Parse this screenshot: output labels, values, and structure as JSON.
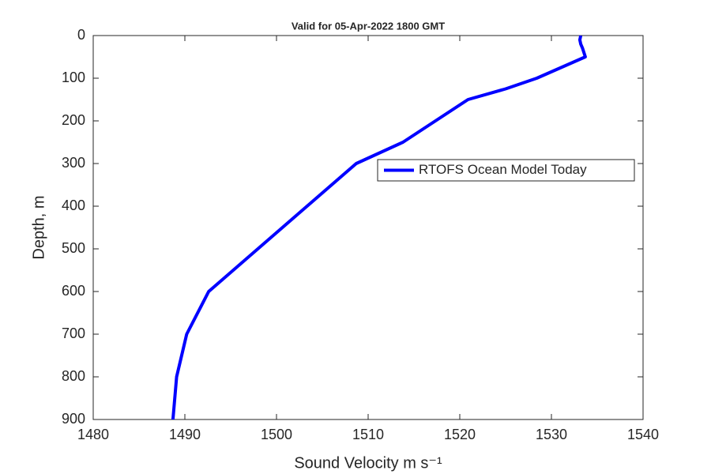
{
  "chart_data": {
    "type": "line",
    "title": "Valid for 05-Apr-2022 1800 GMT",
    "xlabel": "Sound Velocity m s⁻¹",
    "ylabel": "Depth, m",
    "xlim": [
      1480,
      1540
    ],
    "xticks": [
      1480,
      1490,
      1500,
      1510,
      1520,
      1530,
      1540
    ],
    "ylim": [
      0,
      900
    ],
    "yticks": [
      0,
      100,
      200,
      300,
      400,
      500,
      600,
      700,
      800,
      900
    ],
    "y_inverted": true,
    "grid": false,
    "legend": "east",
    "series": [
      {
        "name": "RTOFS Ocean Model Today",
        "color": "#0000ff",
        "x": [
          1533.2,
          1533.1,
          1533.2,
          1533.4,
          1533.7,
          1528.4,
          1525.0,
          1520.9,
          1513.8,
          1508.7,
          1492.6,
          1490.2,
          1489.1,
          1488.7
        ],
        "values": [
          0,
          10,
          20,
          30,
          50,
          100,
          125,
          150,
          250,
          300,
          600,
          700,
          800,
          900
        ]
      }
    ]
  }
}
